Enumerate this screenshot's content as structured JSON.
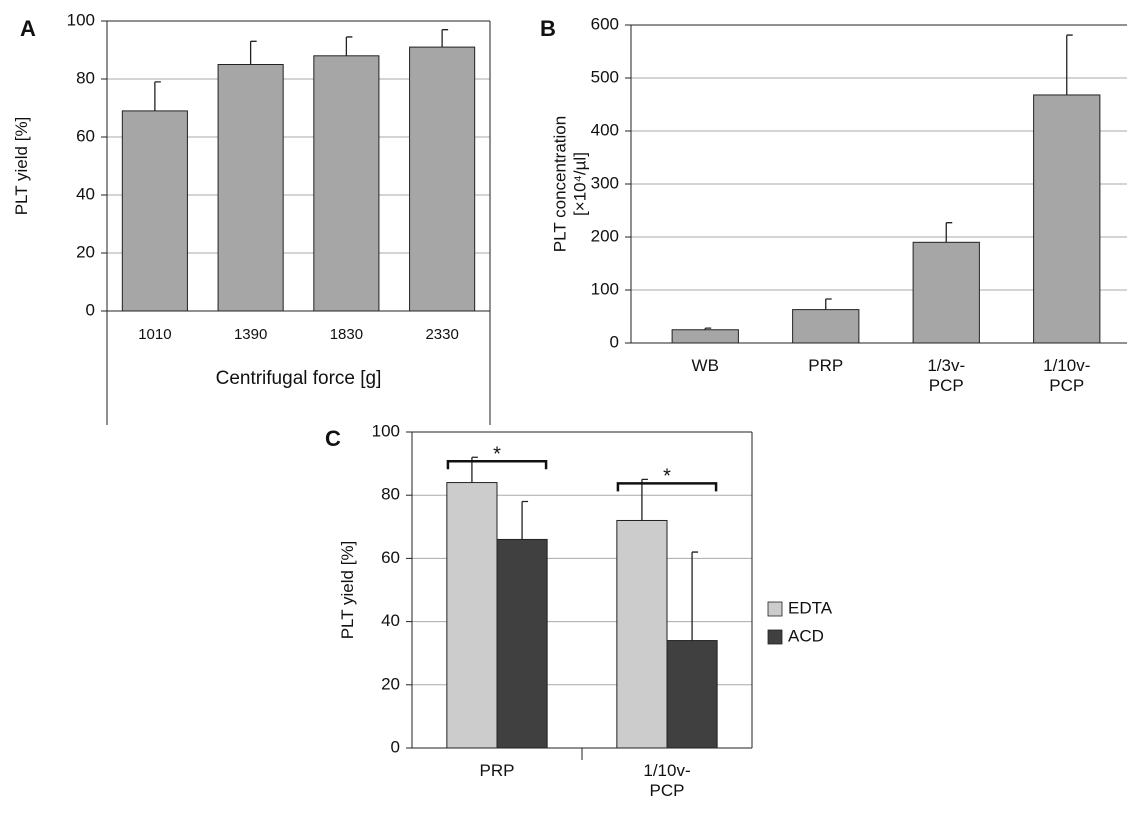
{
  "chart_data": [
    {
      "type": "bar",
      "panel": "A",
      "ylabel": "PLT yield [%]",
      "xlabel": "Centrifugal force [g]",
      "categories": [
        "1010",
        "1390",
        "1830",
        "2330"
      ],
      "values": [
        69,
        85,
        88,
        91
      ],
      "errors": [
        10,
        8,
        6.5,
        6
      ],
      "color": "#a6a6a6",
      "ylim": [
        0,
        100
      ],
      "yticks": [
        0,
        20,
        40,
        60,
        80,
        100
      ],
      "grid": true
    },
    {
      "type": "bar",
      "panel": "B",
      "ylabel": "PLT concentration [×10⁴/µl]",
      "categories": [
        "WB",
        "PRP",
        "1/3v-PCP",
        "1/10v-PCP"
      ],
      "values": [
        25,
        63,
        190,
        468
      ],
      "errors": [
        3,
        20,
        37,
        113
      ],
      "color": "#a6a6a6",
      "ylim": [
        0,
        600
      ],
      "yticks": [
        0,
        100,
        200,
        300,
        400,
        500,
        600
      ],
      "grid": true
    },
    {
      "type": "bar",
      "panel": "C",
      "ylabel": "PLT yield [%]",
      "categories": [
        "PRP",
        "1/10v-PCP"
      ],
      "series": [
        {
          "name": "EDTA",
          "color": "#cccccc",
          "values": [
            84,
            72
          ],
          "errors": [
            8,
            13
          ]
        },
        {
          "name": "ACD",
          "color": "#404040",
          "values": [
            66,
            34
          ],
          "errors": [
            12,
            28
          ]
        }
      ],
      "annotations": [
        "*",
        "*"
      ],
      "ylim": [
        0,
        100
      ],
      "yticks": [
        0,
        20,
        40,
        60,
        80,
        100
      ],
      "grid": true,
      "legend": "right"
    }
  ]
}
